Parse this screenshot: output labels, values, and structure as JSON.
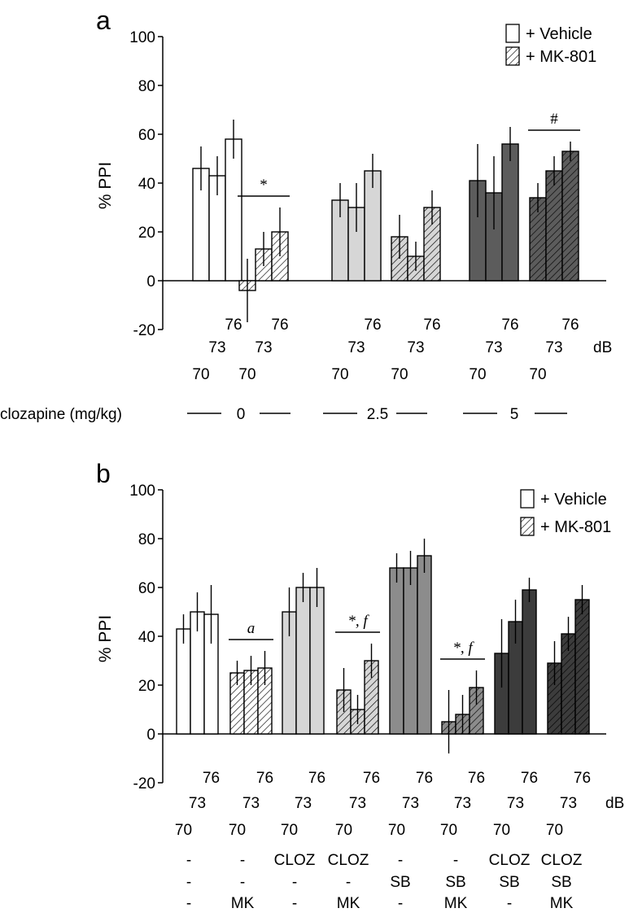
{
  "colors": {
    "vehicle": "#ffffff",
    "clozapine_low": "#d6d6d6",
    "clozapine_high": "#5c5c5c",
    "sb": "#8c8c8c",
    "clozapine_sb": "#3c3c3c",
    "stroke": "#000000"
  },
  "chart_data": [
    {
      "type": "bar",
      "panel_label": "a",
      "ylabel": "% PPI",
      "ylim": [
        -20,
        100
      ],
      "yticks": [
        "-20",
        "0",
        "20",
        "40",
        "60",
        "80",
        "100"
      ],
      "db_label": "dB",
      "db_levels": [
        "70",
        "73",
        "76"
      ],
      "legend": [
        "+ Vehicle",
        "+ MK-801"
      ],
      "dose_label": "clozapine (mg/kg)",
      "dose_values": [
        "0",
        "2.5",
        "5"
      ],
      "groups": [
        {
          "name": "clozapine 0 + Vehicle",
          "pattern": "solid",
          "fill": "vehicle",
          "values": [
            46,
            43,
            58
          ],
          "errors": [
            9,
            8,
            8
          ],
          "sig": ""
        },
        {
          "name": "clozapine 0 + MK-801",
          "pattern": "hatch",
          "fill": "vehicle",
          "values": [
            -4,
            13,
            20
          ],
          "errors": [
            13,
            7,
            10
          ],
          "sig": "*"
        },
        {
          "name": "clozapine 2.5 + Vehicle",
          "pattern": "solid",
          "fill": "clozapine_low",
          "values": [
            33,
            30,
            45
          ],
          "errors": [
            7,
            10,
            7
          ],
          "sig": ""
        },
        {
          "name": "clozapine 2.5 + MK-801",
          "pattern": "hatch",
          "fill": "clozapine_low",
          "values": [
            18,
            10,
            30
          ],
          "errors": [
            9,
            6,
            7
          ],
          "sig": ""
        },
        {
          "name": "clozapine 5 + Vehicle",
          "pattern": "solid",
          "fill": "clozapine_high",
          "values": [
            41,
            36,
            56
          ],
          "errors": [
            15,
            15,
            7
          ],
          "sig": ""
        },
        {
          "name": "clozapine 5 + MK-801",
          "pattern": "hatch",
          "fill": "clozapine_high",
          "values": [
            34,
            45,
            53
          ],
          "errors": [
            6,
            6,
            4
          ],
          "sig": "#"
        }
      ]
    },
    {
      "type": "bar",
      "panel_label": "b",
      "ylabel": "% PPI",
      "ylim": [
        -20,
        100
      ],
      "yticks": [
        "-20",
        "0",
        "20",
        "40",
        "60",
        "80",
        "100"
      ],
      "db_label": "dB",
      "db_levels": [
        "70",
        "73",
        "76"
      ],
      "legend": [
        "+ Vehicle",
        "+ MK-801"
      ],
      "condition_rows": [
        [
          "-",
          "-",
          "CLOZ",
          "CLOZ",
          "-",
          "-",
          "CLOZ",
          "CLOZ"
        ],
        [
          "-",
          "-",
          "-",
          "-",
          "SB",
          "SB",
          "SB",
          "SB"
        ],
        [
          "-",
          "MK",
          "-",
          "MK",
          "-",
          "MK",
          "-",
          "MK"
        ]
      ],
      "groups": [
        {
          "name": "Vehicle",
          "pattern": "solid",
          "fill": "vehicle",
          "values": [
            43,
            50,
            49
          ],
          "errors": [
            6,
            8,
            12
          ],
          "sig": ""
        },
        {
          "name": "MK",
          "pattern": "hatch",
          "fill": "vehicle",
          "values": [
            25,
            26,
            27
          ],
          "errors": [
            5,
            6,
            7
          ],
          "sig": "a"
        },
        {
          "name": "CLOZ",
          "pattern": "solid",
          "fill": "clozapine_low",
          "values": [
            50,
            60,
            60
          ],
          "errors": [
            10,
            6,
            8
          ],
          "sig": ""
        },
        {
          "name": "CLOZ + MK",
          "pattern": "hatch",
          "fill": "clozapine_low",
          "values": [
            18,
            10,
            30
          ],
          "errors": [
            9,
            6,
            7
          ],
          "sig": "*, f"
        },
        {
          "name": "SB",
          "pattern": "solid",
          "fill": "sb",
          "values": [
            68,
            68,
            73
          ],
          "errors": [
            6,
            7,
            7
          ],
          "sig": ""
        },
        {
          "name": "SB + MK",
          "pattern": "hatch",
          "fill": "sb",
          "values": [
            5,
            8,
            19
          ],
          "errors": [
            13,
            8,
            7
          ],
          "sig": "*, f"
        },
        {
          "name": "CLOZ + SB",
          "pattern": "solid",
          "fill": "clozapine_sb",
          "values": [
            33,
            46,
            59
          ],
          "errors": [
            14,
            9,
            5
          ],
          "sig": ""
        },
        {
          "name": "CLOZ + SB + MK",
          "pattern": "hatch",
          "fill": "clozapine_sb",
          "values": [
            29,
            41,
            55
          ],
          "errors": [
            9,
            7,
            6
          ],
          "sig": ""
        }
      ]
    }
  ]
}
